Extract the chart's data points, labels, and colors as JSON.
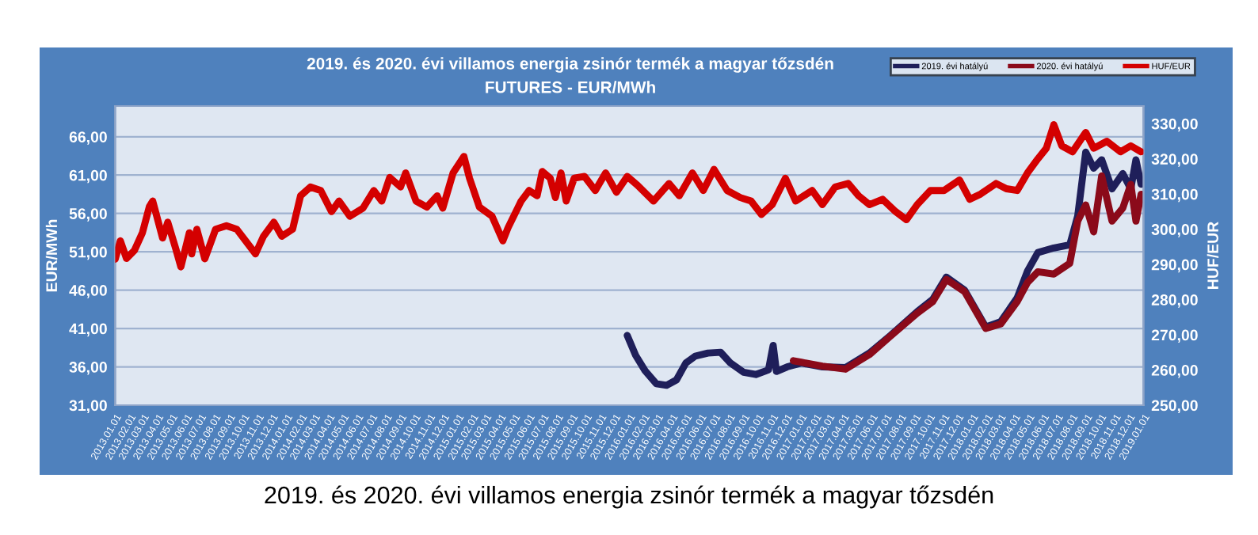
{
  "chart_data": {
    "type": "line",
    "title": "2019. és 2020. évi villamos energia zsinór termék a magyar tőzsdén",
    "subtitle": "FUTURES - EUR/MWh",
    "ylabel": "EUR/MWh",
    "y2label": "HUF/EUR",
    "annotations": [
      "2019. és 2020. évi villamos energia zsinór termék a magyar tőzsdén"
    ],
    "series": [
      {
        "name": "2019. évi hatályú",
        "color": "#1f1f5a",
        "x": [
          "2015-12-28",
          "2016-01-15",
          "2016-02-04",
          "2016-02-28",
          "2016-03-21",
          "2016-04-11",
          "2016-05-01",
          "2016-05-21",
          "2016-06-17",
          "2016-07-14",
          "2016-08-04",
          "2016-09-01",
          "2016-09-27",
          "2016-10-24",
          "2016-11-03",
          "2016-11-10",
          "2016-12-03",
          "2017-01-02",
          "2017-02-16",
          "2017-04-06",
          "2017-05-27",
          "2017-07-11",
          "2017-09-06",
          "2017-10-09",
          "2017-11-07",
          "2017-12-16",
          "2018-01-30",
          "2018-03-03",
          "2018-04-07",
          "2018-04-29",
          "2018-05-21",
          "2018-06-24",
          "2018-07-28",
          "2018-08-14",
          "2018-08-31",
          "2018-09-17",
          "2018-10-04",
          "2018-10-26",
          "2018-11-18",
          "2018-12-05",
          "2018-12-16",
          "2018-12-27"
        ],
        "values": [
          40.1,
          37.5,
          35.5,
          33.8,
          33.6,
          34.3,
          36.5,
          37.4,
          37.8,
          37.9,
          36.5,
          35.3,
          35.0,
          35.6,
          38.8,
          35.4,
          36.0,
          36.5,
          36.0,
          35.9,
          37.8,
          40.1,
          43.2,
          44.8,
          47.7,
          46.0,
          41.2,
          41.9,
          45.0,
          48.5,
          50.9,
          51.5,
          51.9,
          55.7,
          64.0,
          61.9,
          63.0,
          59.2,
          61.2,
          59.2,
          63.0,
          59.8
        ]
      },
      {
        "name": "2020. évi hatályú",
        "color": "#8b0a1a",
        "x": [
          "2016-12-16",
          "2017-01-02",
          "2017-02-16",
          "2017-04-06",
          "2017-05-27",
          "2017-07-11",
          "2017-09-06",
          "2017-10-09",
          "2017-11-07",
          "2017-12-16",
          "2018-01-30",
          "2018-03-03",
          "2018-04-07",
          "2018-04-29",
          "2018-05-21",
          "2018-06-24",
          "2018-07-28",
          "2018-08-14",
          "2018-08-31",
          "2018-09-17",
          "2018-10-04",
          "2018-10-26",
          "2018-11-18",
          "2018-12-05",
          "2018-12-16",
          "2018-12-27"
        ],
        "values": [
          36.8,
          36.6,
          36.1,
          35.7,
          37.6,
          40.0,
          43.0,
          44.5,
          47.4,
          45.8,
          41.0,
          41.6,
          44.5,
          47.0,
          48.4,
          48.1,
          49.5,
          55.0,
          57.1,
          53.6,
          60.9,
          55.0,
          56.7,
          59.8,
          55.0,
          58.5
        ]
      },
      {
        "name": "HUF/EUR",
        "color": "#d40000",
        "axis": "y2",
        "x": [
          "2013-01-01",
          "2013-01-12",
          "2013-01-25",
          "2013-02-11",
          "2013-02-28",
          "2013-03-15",
          "2013-03-22",
          "2013-04-12",
          "2013-04-23",
          "2013-05-10",
          "2013-05-21",
          "2013-06-08",
          "2013-06-13",
          "2013-06-24",
          "2013-07-11",
          "2013-08-03",
          "2013-08-26",
          "2013-09-17",
          "2013-10-10",
          "2013-10-27",
          "2013-11-13",
          "2013-12-05",
          "2013-12-22",
          "2014-01-14",
          "2014-01-31",
          "2014-02-21",
          "2014-03-15",
          "2014-04-07",
          "2014-04-23",
          "2014-05-16",
          "2014-06-13",
          "2014-07-06",
          "2014-07-23",
          "2014-08-09",
          "2014-09-01",
          "2014-09-12",
          "2014-10-04",
          "2014-10-27",
          "2014-11-18",
          "2014-11-30",
          "2014-12-22",
          "2015-01-14",
          "2015-01-26",
          "2015-02-16",
          "2015-03-15",
          "2015-04-07",
          "2015-04-18",
          "2015-05-16",
          "2015-06-02",
          "2015-06-19",
          "2015-06-30",
          "2015-07-17",
          "2015-07-28",
          "2015-08-09",
          "2015-08-20",
          "2015-09-06",
          "2015-09-28",
          "2015-10-21",
          "2015-11-12",
          "2015-12-05",
          "2015-12-28",
          "2016-01-19",
          "2016-02-22",
          "2016-03-26",
          "2016-04-17",
          "2016-05-15",
          "2016-06-07",
          "2016-06-30",
          "2016-07-28",
          "2016-08-25",
          "2016-09-17",
          "2016-10-09",
          "2016-11-01",
          "2016-11-29",
          "2016-12-21",
          "2017-01-25",
          "2017-02-16",
          "2017-03-15",
          "2017-04-12",
          "2017-05-04",
          "2017-05-27",
          "2017-06-24",
          "2017-07-22",
          "2017-08-14",
          "2017-09-06",
          "2017-10-04",
          "2017-11-02",
          "2017-12-05",
          "2017-12-27",
          "2018-01-19",
          "2018-02-21",
          "2018-03-15",
          "2018-04-07",
          "2018-04-29",
          "2018-05-21",
          "2018-06-08",
          "2018-06-24",
          "2018-07-11",
          "2018-08-03",
          "2018-08-31",
          "2018-09-17",
          "2018-10-15",
          "2018-11-13",
          "2018-12-05",
          "2018-12-27"
        ],
        "values": [
          291.5,
          296.7,
          291.7,
          294,
          299,
          306.5,
          308,
          297.5,
          302,
          294.5,
          289.3,
          299,
          293,
          300,
          291.6,
          300,
          301,
          300,
          296,
          293,
          298,
          302,
          298,
          300,
          309.5,
          312,
          311,
          305,
          308,
          303.7,
          306,
          311,
          308,
          314.7,
          312,
          316,
          308,
          306.3,
          309.5,
          306,
          316,
          320.7,
          314.5,
          306.3,
          303.7,
          296.7,
          300.4,
          308,
          311,
          309.5,
          316.4,
          314.5,
          309,
          316,
          308,
          314.5,
          315,
          311,
          316,
          310.5,
          315,
          312.5,
          308,
          313,
          309.5,
          316,
          311,
          317,
          311,
          309,
          308,
          304.2,
          307,
          314.5,
          308,
          311,
          307,
          312,
          313,
          309.5,
          307,
          308.5,
          305,
          302.7,
          307,
          311,
          311,
          314,
          308.5,
          310,
          313,
          311.5,
          311,
          316,
          320,
          323,
          329.7,
          323.7,
          322,
          327.5,
          323,
          325,
          322,
          323.7,
          322
        ]
      }
    ],
    "xlim": [
      "2013-01-01",
      "2019-01-01"
    ],
    "xticks": [
      {
        "value": "2013-01-01",
        "label": "2013.01.01"
      },
      {
        "value": "2013-02-01",
        "label": "2013.02.01"
      },
      {
        "value": "2013-03-01",
        "label": "2013.03.01"
      },
      {
        "value": "2013-04-01",
        "label": "2013.04.01"
      },
      {
        "value": "2013-05-01",
        "label": "2013.05.01"
      },
      {
        "value": "2013-06-01",
        "label": "2013.06.01"
      },
      {
        "value": "2013-07-01",
        "label": "2013.07.01"
      },
      {
        "value": "2013-08-01",
        "label": "2013.08.01"
      },
      {
        "value": "2013-09-01",
        "label": "2013.09.01"
      },
      {
        "value": "2013-10-01",
        "label": "2013.10.01"
      },
      {
        "value": "2013-11-01",
        "label": "2013.11.01"
      },
      {
        "value": "2013-12-01",
        "label": "2013.12.01"
      },
      {
        "value": "2014-01-01",
        "label": "2014.01.01"
      },
      {
        "value": "2014-02-01",
        "label": "2014.02.01"
      },
      {
        "value": "2014-03-01",
        "label": "2014.03.01"
      },
      {
        "value": "2014-04-01",
        "label": "2014.04.01"
      },
      {
        "value": "2014-05-01",
        "label": "2014.05.01"
      },
      {
        "value": "2014-06-01",
        "label": "2014.06.01"
      },
      {
        "value": "2014-07-01",
        "label": "2014.07.01"
      },
      {
        "value": "2014-08-01",
        "label": "2014.08.01"
      },
      {
        "value": "2014-09-01",
        "label": "2014.09.01"
      },
      {
        "value": "2014-10-01",
        "label": "2014.10.01"
      },
      {
        "value": "2014-11-01",
        "label": "2014.11.01"
      },
      {
        "value": "2014-12-01",
        "label": "2014.12.01"
      },
      {
        "value": "2015-01-01",
        "label": "2015.01.01"
      },
      {
        "value": "2015-02-01",
        "label": "2015.02.01"
      },
      {
        "value": "2015-03-01",
        "label": "2015.03.01"
      },
      {
        "value": "2015-04-01",
        "label": "2015.04.01"
      },
      {
        "value": "2015-05-01",
        "label": "2015.05.01"
      },
      {
        "value": "2015-06-01",
        "label": "2015.06.01"
      },
      {
        "value": "2015-07-01",
        "label": "2015.07.01"
      },
      {
        "value": "2015-08-01",
        "label": "2015.08.01"
      },
      {
        "value": "2015-09-01",
        "label": "2015.09.01"
      },
      {
        "value": "2015-10-01",
        "label": "2015.10.01"
      },
      {
        "value": "2015-11-01",
        "label": "2015.11.01"
      },
      {
        "value": "2015-12-01",
        "label": "2015.12.01"
      },
      {
        "value": "2016-01-01",
        "label": "2016.01.01"
      },
      {
        "value": "2016-02-01",
        "label": "2016.02.01"
      },
      {
        "value": "2016-03-01",
        "label": "2016.03.01"
      },
      {
        "value": "2016-04-01",
        "label": "2016.04.01"
      },
      {
        "value": "2016-05-01",
        "label": "2016.05.01"
      },
      {
        "value": "2016-06-01",
        "label": "2016.06.01"
      },
      {
        "value": "2016-07-01",
        "label": "2016.07.01"
      },
      {
        "value": "2016-08-01",
        "label": "2016.08.01"
      },
      {
        "value": "2016-09-01",
        "label": "2016.09.01"
      },
      {
        "value": "2016-10-01",
        "label": "2016.10.01"
      },
      {
        "value": "2016-11-01",
        "label": "2016.11.01"
      },
      {
        "value": "2016-12-01",
        "label": "2016.12.01"
      },
      {
        "value": "2017-01-01",
        "label": "2017.01.01"
      },
      {
        "value": "2017-02-01",
        "label": "2017.02.01"
      },
      {
        "value": "2017-03-01",
        "label": "2017.03.01"
      },
      {
        "value": "2017-04-01",
        "label": "2017.04.01"
      },
      {
        "value": "2017-05-01",
        "label": "2017.05.01"
      },
      {
        "value": "2017-06-01",
        "label": "2017.06.01"
      },
      {
        "value": "2017-07-01",
        "label": "2017.07.01"
      },
      {
        "value": "2017-08-01",
        "label": "2017.08.01"
      },
      {
        "value": "2017-09-01",
        "label": "2017.09.01"
      },
      {
        "value": "2017-10-01",
        "label": "2017.10.01"
      },
      {
        "value": "2017-11-01",
        "label": "2017.11.01"
      },
      {
        "value": "2017-12-01",
        "label": "2017.12.01"
      },
      {
        "value": "2018-01-01",
        "label": "2018.01.01"
      },
      {
        "value": "2018-02-01",
        "label": "2018.02.01"
      },
      {
        "value": "2018-03-01",
        "label": "2018.03.01"
      },
      {
        "value": "2018-04-01",
        "label": "2018.04.01"
      },
      {
        "value": "2018-05-01",
        "label": "2018.05.01"
      },
      {
        "value": "2018-06-01",
        "label": "2018.06.01"
      },
      {
        "value": "2018-07-01",
        "label": "2018.07.01"
      },
      {
        "value": "2018-08-01",
        "label": "2018.08.01"
      },
      {
        "value": "2018-09-01",
        "label": "2018.09.01"
      },
      {
        "value": "2018-10-01",
        "label": "2018.10.01"
      },
      {
        "value": "2018-11-01",
        "label": "2018.11.01"
      },
      {
        "value": "2018-12-01",
        "label": "2018.12.01"
      },
      {
        "value": "2019-01-01",
        "label": "2019.01.01"
      }
    ],
    "ylim": [
      31,
      70
    ],
    "yticks": [
      {
        "value": 31,
        "label": "31,00"
      },
      {
        "value": 36,
        "label": "36,00"
      },
      {
        "value": 41,
        "label": "41,00"
      },
      {
        "value": 46,
        "label": "46,00"
      },
      {
        "value": 51,
        "label": "51,00"
      },
      {
        "value": 56,
        "label": "56,00"
      },
      {
        "value": 61,
        "label": "61,00"
      },
      {
        "value": 66,
        "label": "66,00"
      }
    ],
    "y2lim": [
      250,
      335
    ],
    "y2ticks": [
      {
        "value": 250,
        "label": "250,00"
      },
      {
        "value": 260,
        "label": "260,00"
      },
      {
        "value": 270,
        "label": "270,00"
      },
      {
        "value": 280,
        "label": "280,00"
      },
      {
        "value": 290,
        "label": "290,00"
      },
      {
        "value": 300,
        "label": "300,00"
      },
      {
        "value": 310,
        "label": "310,00"
      },
      {
        "value": 320,
        "label": "320,00"
      },
      {
        "value": 330,
        "label": "330,00"
      }
    ],
    "grid": "y",
    "legend": "top right",
    "marker": "none",
    "line_style": "solid"
  }
}
